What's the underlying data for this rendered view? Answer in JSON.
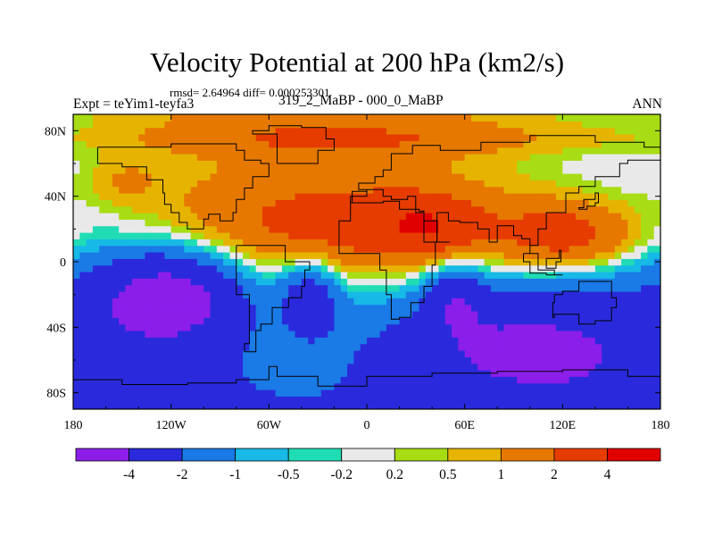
{
  "header": {
    "title": "Velocity Potential at 200 hPa (km2/s)",
    "rmsd": "rmsd= 2.64964 diff= 0.000253301",
    "expt": "Expt = teYim1-teyfa3",
    "subtitle": "319_2_MaBP - 000_0_MaBP",
    "season": "ANN"
  },
  "chart_data": {
    "type": "heatmap",
    "title": "Velocity Potential at 200 hPa (km2/s)",
    "xlim": [
      -180,
      180
    ],
    "ylim": [
      -90,
      90
    ],
    "x_ticks": [
      {
        "value": -180,
        "label": "180"
      },
      {
        "value": -120,
        "label": "120W"
      },
      {
        "value": -60,
        "label": "60W"
      },
      {
        "value": 0,
        "label": "0"
      },
      {
        "value": 60,
        "label": "60E"
      },
      {
        "value": 120,
        "label": "120E"
      },
      {
        "value": 180,
        "label": "180"
      }
    ],
    "y_ticks": [
      {
        "value": 80,
        "label": "80N"
      },
      {
        "value": 40,
        "label": "40N"
      },
      {
        "value": 0,
        "label": "0"
      },
      {
        "value": -40,
        "label": "40S"
      },
      {
        "value": -80,
        "label": "80S"
      }
    ],
    "levels": [
      -4,
      -2,
      -1,
      -0.5,
      -0.2,
      0.2,
      0.5,
      1,
      2,
      4
    ],
    "level_labels": [
      "-4",
      "-2",
      "-1",
      "-0.5",
      "-0.2",
      "0.2",
      "0.5",
      "1",
      "2",
      "4"
    ],
    "colors": [
      "#8c1eea",
      "#2a2adc",
      "#1a7ae6",
      "#17b9e6",
      "#20dcb4",
      "#e9e9e9",
      "#a8dc14",
      "#e6b400",
      "#e67800",
      "#e63c00",
      "#e10000"
    ],
    "field_centers": [
      {
        "lon": 10,
        "lat": 20,
        "value": 2.5,
        "spread_lon": 170,
        "spread_lat": 32
      },
      {
        "lon": 35,
        "lat": 22,
        "value": 2.2,
        "spread_lon": 28,
        "spread_lat": 16
      },
      {
        "lon": 125,
        "lat": 15,
        "value": 2.2,
        "spread_lon": 40,
        "spread_lat": 20
      },
      {
        "lon": 5,
        "lat": 75,
        "value": 1.0,
        "spread_lon": 170,
        "spread_lat": 10
      },
      {
        "lon": -120,
        "lat": -20,
        "value": -4.2,
        "spread_lon": 45,
        "spread_lat": 30
      },
      {
        "lon": -35,
        "lat": -20,
        "value": -2.6,
        "spread_lon": 18,
        "spread_lat": 22
      },
      {
        "lon": 55,
        "lat": -20,
        "value": -2.4,
        "spread_lon": 18,
        "spread_lat": 20
      },
      {
        "lon": 90,
        "lat": -50,
        "value": -2.3,
        "spread_lon": 80,
        "spread_lat": 30
      },
      {
        "lon": -150,
        "lat": 50,
        "value": 0.9,
        "spread_lon": 25,
        "spread_lat": 15
      }
    ]
  }
}
